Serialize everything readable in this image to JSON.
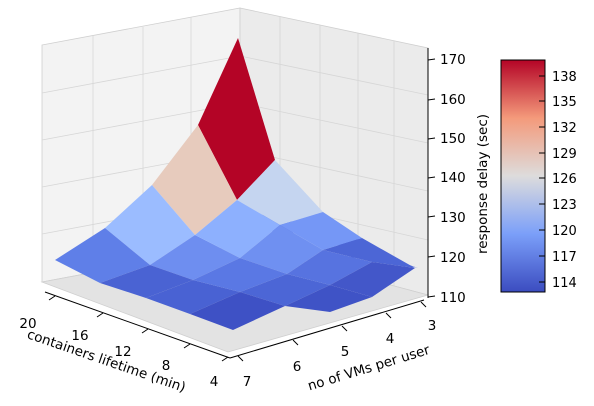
{
  "chart_data": {
    "type": "surface3d",
    "title": "",
    "xlabel": "containers lifetime (min)",
    "ylabel": "no of VMs per user",
    "zlabel": "response delay (sec)",
    "x_ticks": [
      "20",
      "16",
      "12",
      "8",
      "4"
    ],
    "y_ticks": [
      "7",
      "6",
      "5",
      "4",
      "3"
    ],
    "z_ticks": [
      "110",
      "120",
      "130",
      "140",
      "150",
      "160",
      "170"
    ],
    "zlim": [
      110,
      170
    ],
    "colormap": "coolwarm",
    "colorbar_ticks": [
      "138",
      "135",
      "132",
      "129",
      "126",
      "123",
      "120",
      "117",
      "114"
    ],
    "colorbar_range": [
      113,
      140
    ],
    "grid": true
  }
}
